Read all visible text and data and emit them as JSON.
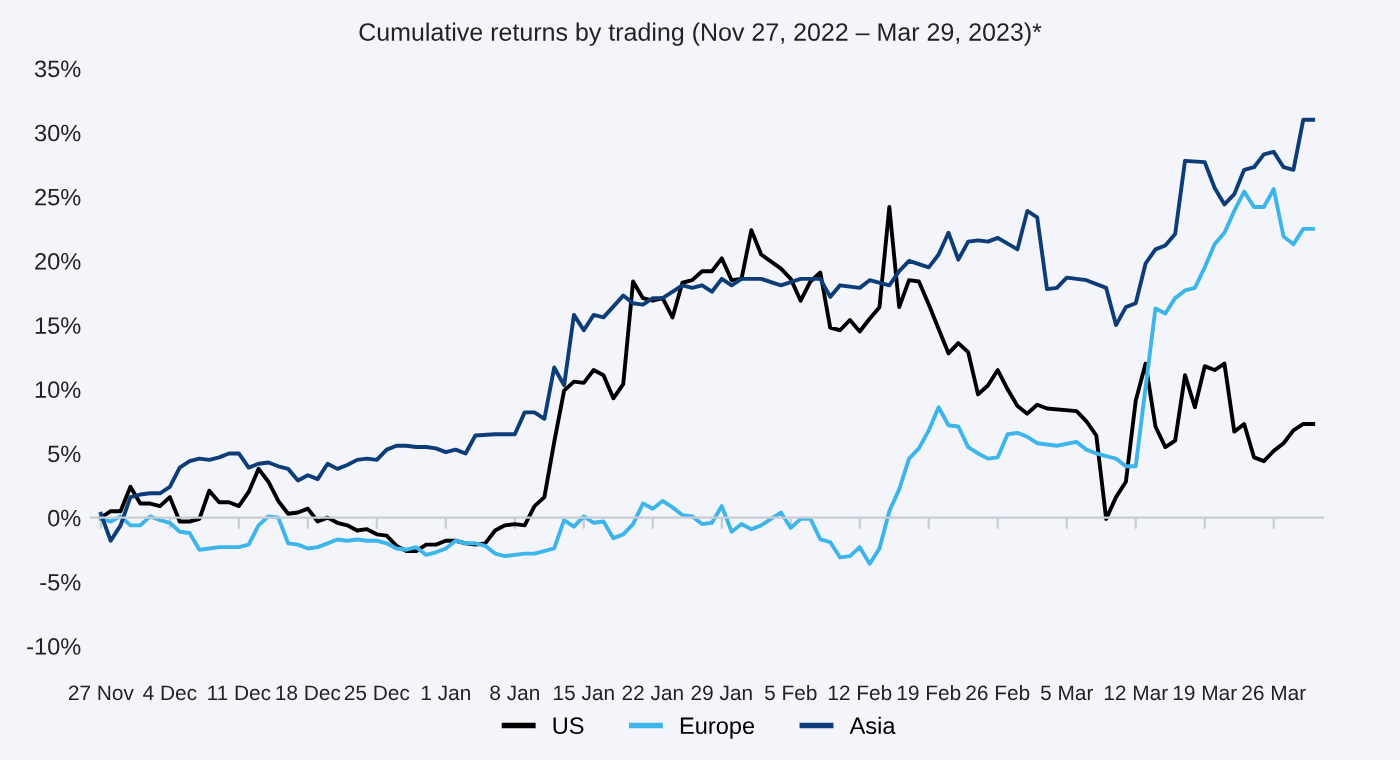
{
  "chart_data": {
    "type": "line",
    "title": "Cumulative returns by trading (Nov 27, 2022 – Mar 29, 2023)*",
    "xlim": [
      "2022-11-26",
      "2023-03-31"
    ],
    "ylim": [
      -10,
      35
    ],
    "xticks": [
      {
        "value": "2022-11-27",
        "label": "27 Nov"
      },
      {
        "value": "2022-12-04",
        "label": "4 Dec"
      },
      {
        "value": "2022-12-11",
        "label": "11 Dec"
      },
      {
        "value": "2022-12-18",
        "label": "18 Dec"
      },
      {
        "value": "2022-12-25",
        "label": "25 Dec"
      },
      {
        "value": "2023-01-01",
        "label": "1 Jan"
      },
      {
        "value": "2023-01-08",
        "label": "8 Jan"
      },
      {
        "value": "2023-01-15",
        "label": "15 Jan"
      },
      {
        "value": "2023-01-22",
        "label": "22 Jan"
      },
      {
        "value": "2023-01-29",
        "label": "29 Jan"
      },
      {
        "value": "2023-02-05",
        "label": "5 Feb"
      },
      {
        "value": "2023-02-12",
        "label": "12 Feb"
      },
      {
        "value": "2023-02-19",
        "label": "19 Feb"
      },
      {
        "value": "2023-02-26",
        "label": "26 Feb"
      },
      {
        "value": "2023-03-05",
        "label": "5 Mar"
      },
      {
        "value": "2023-03-12",
        "label": "12 Mar"
      },
      {
        "value": "2023-03-19",
        "label": "19 Mar"
      },
      {
        "value": "2023-03-26",
        "label": "26 Mar"
      }
    ],
    "yticks": [
      {
        "value": -10,
        "label": "-10%"
      },
      {
        "value": -5,
        "label": "-5%"
      },
      {
        "value": 0,
        "label": "0%"
      },
      {
        "value": 5,
        "label": "5%"
      },
      {
        "value": 10,
        "label": "10%"
      },
      {
        "value": 15,
        "label": "15%"
      },
      {
        "value": 20,
        "label": "20%"
      },
      {
        "value": 25,
        "label": "25%"
      },
      {
        "value": 30,
        "label": "30%"
      },
      {
        "value": 35,
        "label": "35%"
      }
    ],
    "legend": "bottom",
    "marker": "none",
    "line_style": "solid",
    "series": [
      {
        "name": "US",
        "color": "#000000",
        "x": [
          "2022-11-27",
          "2022-11-28",
          "2022-11-29",
          "2022-11-30",
          "2022-12-01",
          "2022-12-02",
          "2022-12-03",
          "2022-12-04",
          "2022-12-05",
          "2022-12-06",
          "2022-12-07",
          "2022-12-08",
          "2022-12-09",
          "2022-12-10",
          "2022-12-11",
          "2022-12-12",
          "2022-12-13",
          "2022-12-14",
          "2022-12-15",
          "2022-12-16",
          "2022-12-17",
          "2022-12-18",
          "2022-12-19",
          "2022-12-20",
          "2022-12-21",
          "2022-12-22",
          "2022-12-23",
          "2022-12-24",
          "2022-12-25",
          "2022-12-26",
          "2022-12-27",
          "2022-12-28",
          "2022-12-29",
          "2022-12-30",
          "2022-12-31",
          "2023-01-01",
          "2023-01-02",
          "2023-01-03",
          "2023-01-04",
          "2023-01-05",
          "2023-01-06",
          "2023-01-07",
          "2023-01-08",
          "2023-01-09",
          "2023-01-10",
          "2023-01-11",
          "2023-01-12",
          "2023-01-13",
          "2023-01-14",
          "2023-01-15",
          "2023-01-16",
          "2023-01-17",
          "2023-01-18",
          "2023-01-19",
          "2023-01-20",
          "2023-01-21",
          "2023-01-22",
          "2023-01-23",
          "2023-01-24",
          "2023-01-25",
          "2023-01-26",
          "2023-01-27",
          "2023-01-28",
          "2023-01-29",
          "2023-01-30",
          "2023-01-31",
          "2023-02-01",
          "2023-02-02",
          "2023-02-04",
          "2023-02-05",
          "2023-02-06",
          "2023-02-07",
          "2023-02-08",
          "2023-02-09",
          "2023-02-10",
          "2023-02-11",
          "2023-02-12",
          "2023-02-13",
          "2023-02-14",
          "2023-02-15",
          "2023-02-16",
          "2023-02-17",
          "2023-02-18",
          "2023-02-19",
          "2023-02-20",
          "2023-02-21",
          "2023-02-22",
          "2023-02-23",
          "2023-02-24",
          "2023-02-25",
          "2023-02-26",
          "2023-02-27",
          "2023-02-28",
          "2023-03-01",
          "2023-03-02",
          "2023-03-03",
          "2023-03-06",
          "2023-03-07",
          "2023-03-08",
          "2023-03-09",
          "2023-03-10",
          "2023-03-11",
          "2023-03-12",
          "2023-03-13",
          "2023-03-14",
          "2023-03-15",
          "2023-03-16",
          "2023-03-17",
          "2023-03-18",
          "2023-03-19",
          "2023-03-20",
          "2023-03-21",
          "2023-03-22",
          "2023-03-23",
          "2023-03-24",
          "2023-03-25",
          "2023-03-26",
          "2023-03-27",
          "2023-03-28",
          "2023-03-29",
          "2023-03-30"
        ],
        "values": [
          0,
          0.5,
          0.5,
          2.4,
          1.1,
          1.1,
          0.9,
          1.6,
          -0.3,
          -0.3,
          -0.1,
          2.1,
          1.2,
          1.2,
          0.9,
          2.0,
          3.8,
          2.8,
          1.3,
          0.3,
          0.4,
          0.7,
          -0.3,
          0.0,
          -0.4,
          -0.6,
          -1.0,
          -0.9,
          -1.3,
          -1.4,
          -2.2,
          -2.6,
          -2.6,
          -2.1,
          -2.1,
          -1.8,
          -1.8,
          -2.0,
          -2.1,
          -2.0,
          -1.0,
          -0.6,
          -0.5,
          -0.6,
          0.9,
          1.6,
          5.9,
          9.9,
          10.6,
          10.5,
          11.5,
          11.1,
          9.3,
          10.4,
          18.4,
          17.1,
          16.9,
          17.1,
          15.6,
          18.3,
          18.5,
          19.2,
          19.2,
          20.2,
          18.5,
          18.6,
          22.4,
          20.5,
          19.4,
          18.6,
          16.9,
          18.4,
          19.1,
          14.8,
          14.6,
          15.4,
          14.5,
          15.5,
          16.4,
          24.2,
          16.4,
          18.5,
          18.4,
          16.6,
          14.7,
          12.8,
          13.6,
          12.9,
          9.6,
          10.3,
          11.5,
          10.0,
          8.7,
          8.1,
          8.8,
          8.5,
          8.3,
          7.5,
          6.4,
          -0.1,
          1.6,
          2.8,
          9.1,
          12.0,
          7.1,
          5.5,
          6.0,
          11.1,
          8.6,
          11.8,
          11.5,
          12.0,
          6.7,
          7.3,
          4.7,
          4.4,
          5.2,
          5.8,
          6.8,
          7.3,
          7.3
        ]
      },
      {
        "name": "Europe",
        "color": "#3db5ea",
        "x": [
          "2022-11-27",
          "2022-11-28",
          "2022-11-29",
          "2022-11-30",
          "2022-12-01",
          "2022-12-02",
          "2022-12-03",
          "2022-12-04",
          "2022-12-05",
          "2022-12-06",
          "2022-12-07",
          "2022-12-08",
          "2022-12-09",
          "2022-12-10",
          "2022-12-11",
          "2022-12-12",
          "2022-12-13",
          "2022-12-14",
          "2022-12-15",
          "2022-12-16",
          "2022-12-17",
          "2022-12-18",
          "2022-12-19",
          "2022-12-20",
          "2022-12-21",
          "2022-12-22",
          "2022-12-23",
          "2022-12-24",
          "2022-12-25",
          "2022-12-26",
          "2022-12-27",
          "2022-12-28",
          "2022-12-29",
          "2022-12-30",
          "2022-12-31",
          "2023-01-01",
          "2023-01-02",
          "2023-01-03",
          "2023-01-04",
          "2023-01-05",
          "2023-01-06",
          "2023-01-07",
          "2023-01-09",
          "2023-01-10",
          "2023-01-12",
          "2023-01-13",
          "2023-01-14",
          "2023-01-15",
          "2023-01-16",
          "2023-01-17",
          "2023-01-18",
          "2023-01-19",
          "2023-01-20",
          "2023-01-21",
          "2023-01-22",
          "2023-01-23",
          "2023-01-24",
          "2023-01-25",
          "2023-01-26",
          "2023-01-27",
          "2023-01-28",
          "2023-01-29",
          "2023-01-30",
          "2023-01-31",
          "2023-02-01",
          "2023-02-02",
          "2023-02-03",
          "2023-02-04",
          "2023-02-05",
          "2023-02-06",
          "2023-02-07",
          "2023-02-08",
          "2023-02-09",
          "2023-02-10",
          "2023-02-11",
          "2023-02-12",
          "2023-02-13",
          "2023-02-14",
          "2023-02-15",
          "2023-02-16",
          "2023-02-17",
          "2023-02-18",
          "2023-02-19",
          "2023-02-20",
          "2023-02-21",
          "2023-02-22",
          "2023-02-23",
          "2023-02-24",
          "2023-02-25",
          "2023-02-26",
          "2023-02-27",
          "2023-02-28",
          "2023-03-01",
          "2023-03-02",
          "2023-03-04",
          "2023-03-06",
          "2023-03-07",
          "2023-03-08",
          "2023-03-09",
          "2023-03-10",
          "2023-03-11",
          "2023-03-12",
          "2023-03-14",
          "2023-03-15",
          "2023-03-16",
          "2023-03-17",
          "2023-03-18",
          "2023-03-19",
          "2023-03-20",
          "2023-03-21",
          "2023-03-22",
          "2023-03-23",
          "2023-03-24",
          "2023-03-25",
          "2023-03-26",
          "2023-03-27",
          "2023-03-28",
          "2023-03-29",
          "2023-03-30"
        ],
        "values": [
          -0.1,
          -0.3,
          0.1,
          -0.6,
          -0.6,
          0.1,
          -0.2,
          -0.4,
          -1.1,
          -1.2,
          -2.5,
          -2.4,
          -2.3,
          -2.3,
          -2.3,
          -2.1,
          -0.6,
          0.1,
          0.0,
          -2.0,
          -2.1,
          -2.4,
          -2.3,
          -2.0,
          -1.7,
          -1.8,
          -1.7,
          -1.8,
          -1.8,
          -2.0,
          -2.4,
          -2.5,
          -2.3,
          -2.9,
          -2.7,
          -2.4,
          -1.8,
          -2.0,
          -2.0,
          -2.2,
          -2.8,
          -3.0,
          -2.8,
          -2.8,
          -2.4,
          -0.2,
          -0.7,
          0.1,
          -0.4,
          -0.3,
          -1.6,
          -1.3,
          -0.5,
          1.1,
          0.7,
          1.3,
          0.8,
          0.2,
          0.1,
          -0.5,
          -0.4,
          0.9,
          -1.1,
          -0.5,
          -0.9,
          -0.6,
          -0.1,
          0.4,
          -0.8,
          -0.1,
          -0.1,
          -1.7,
          -1.9,
          -3.1,
          -3.0,
          -2.3,
          -3.6,
          -2.4,
          0.5,
          2.2,
          4.6,
          5.4,
          6.8,
          8.6,
          7.2,
          7.1,
          5.5,
          5.0,
          4.6,
          4.7,
          6.5,
          6.6,
          6.3,
          5.8,
          5.6,
          5.9,
          5.3,
          5.0,
          4.8,
          4.6,
          4.0,
          4.0,
          16.3,
          15.9,
          17.1,
          17.7,
          17.9,
          19.5,
          21.3,
          22.2,
          23.9,
          25.4,
          24.2,
          24.2,
          25.6,
          21.9,
          21.3,
          22.5,
          22.5
        ]
      },
      {
        "name": "Asia",
        "color": "#0c3d78",
        "x": [
          "2022-11-27",
          "2022-11-28",
          "2022-11-29",
          "2022-11-30",
          "2022-12-01",
          "2022-12-02",
          "2022-12-03",
          "2022-12-04",
          "2022-12-05",
          "2022-12-06",
          "2022-12-07",
          "2022-12-08",
          "2022-12-09",
          "2022-12-10",
          "2022-12-11",
          "2022-12-12",
          "2022-12-13",
          "2022-12-14",
          "2022-12-15",
          "2022-12-16",
          "2022-12-17",
          "2022-12-18",
          "2022-12-19",
          "2022-12-20",
          "2022-12-21",
          "2022-12-22",
          "2022-12-23",
          "2022-12-24",
          "2022-12-25",
          "2022-12-26",
          "2022-12-27",
          "2022-12-28",
          "2022-12-29",
          "2022-12-30",
          "2022-12-31",
          "2023-01-01",
          "2023-01-02",
          "2023-01-03",
          "2023-01-04",
          "2023-01-06",
          "2023-01-08",
          "2023-01-09",
          "2023-01-10",
          "2023-01-11",
          "2023-01-12",
          "2023-01-13",
          "2023-01-14",
          "2023-01-15",
          "2023-01-16",
          "2023-01-17",
          "2023-01-19",
          "2023-01-20",
          "2023-01-21",
          "2023-01-22",
          "2023-01-23",
          "2023-01-25",
          "2023-01-26",
          "2023-01-27",
          "2023-01-28",
          "2023-01-29",
          "2023-01-30",
          "2023-01-31",
          "2023-02-02",
          "2023-02-04",
          "2023-02-06",
          "2023-02-08",
          "2023-02-09",
          "2023-02-10",
          "2023-02-12",
          "2023-02-13",
          "2023-02-15",
          "2023-02-16",
          "2023-02-17",
          "2023-02-19",
          "2023-02-20",
          "2023-02-21",
          "2023-02-22",
          "2023-02-23",
          "2023-02-24",
          "2023-02-25",
          "2023-02-26",
          "2023-02-28",
          "2023-03-01",
          "2023-03-02",
          "2023-03-03",
          "2023-03-04",
          "2023-03-05",
          "2023-03-07",
          "2023-03-09",
          "2023-03-10",
          "2023-03-11",
          "2023-03-12",
          "2023-03-13",
          "2023-03-14",
          "2023-03-15",
          "2023-03-16",
          "2023-03-17",
          "2023-03-19",
          "2023-03-20",
          "2023-03-21",
          "2023-03-22",
          "2023-03-23",
          "2023-03-24",
          "2023-03-25",
          "2023-03-26",
          "2023-03-27",
          "2023-03-28",
          "2023-03-29",
          "2023-03-30"
        ],
        "values": [
          0.3,
          -1.8,
          -0.6,
          1.6,
          1.8,
          1.9,
          1.9,
          2.4,
          3.9,
          4.4,
          4.6,
          4.5,
          4.7,
          5.0,
          5.0,
          3.9,
          4.2,
          4.3,
          4.0,
          3.8,
          2.9,
          3.3,
          3.0,
          4.2,
          3.8,
          4.1,
          4.5,
          4.6,
          4.5,
          5.3,
          5.6,
          5.6,
          5.5,
          5.5,
          5.4,
          5.1,
          5.3,
          5.0,
          6.4,
          6.5,
          6.5,
          8.2,
          8.2,
          7.7,
          11.7,
          10.3,
          15.8,
          14.6,
          15.8,
          15.6,
          17.3,
          16.7,
          16.6,
          17.1,
          17.1,
          18.1,
          17.9,
          18.1,
          17.6,
          18.6,
          18.1,
          18.6,
          18.6,
          18.1,
          18.6,
          18.6,
          17.2,
          18.1,
          17.9,
          18.5,
          18.1,
          19.2,
          20.0,
          19.5,
          20.5,
          22.2,
          20.1,
          21.5,
          21.6,
          21.5,
          21.8,
          20.9,
          23.9,
          23.4,
          17.8,
          17.9,
          18.7,
          18.5,
          17.9,
          15.0,
          16.4,
          16.7,
          19.8,
          20.9,
          21.2,
          22.1,
          27.8,
          27.7,
          25.7,
          24.4,
          25.2,
          27.1,
          27.3,
          28.3,
          28.5,
          27.3,
          27.1,
          31.0,
          31.0
        ]
      }
    ]
  }
}
